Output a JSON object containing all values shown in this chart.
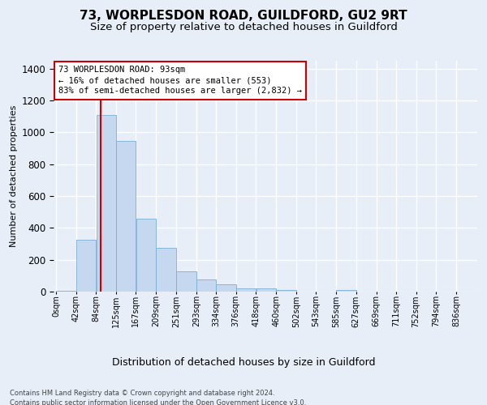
{
  "title1": "73, WORPLESDON ROAD, GUILDFORD, GU2 9RT",
  "title2": "Size of property relative to detached houses in Guildford",
  "xlabel": "Distribution of detached houses by size in Guildford",
  "ylabel": "Number of detached properties",
  "footnote1": "Contains HM Land Registry data © Crown copyright and database right 2024.",
  "footnote2": "Contains public sector information licensed under the Open Government Licence v3.0.",
  "bar_values": [
    5,
    325,
    1110,
    945,
    460,
    275,
    125,
    75,
    48,
    22,
    22,
    12,
    0,
    0,
    8,
    0,
    0,
    0,
    0
  ],
  "bin_left_edges": [
    0,
    42,
    84,
    125,
    167,
    209,
    251,
    293,
    334,
    376,
    418,
    460,
    502,
    543,
    585,
    627,
    669,
    711,
    752
  ],
  "bin_width": 42,
  "tick_positions": [
    0,
    42,
    84,
    125,
    167,
    209,
    251,
    293,
    334,
    376,
    418,
    460,
    502,
    543,
    585,
    627,
    669,
    711,
    752,
    794,
    836
  ],
  "tick_labels": [
    "0sqm",
    "42sqm",
    "84sqm",
    "125sqm",
    "167sqm",
    "209sqm",
    "251sqm",
    "293sqm",
    "334sqm",
    "376sqm",
    "418sqm",
    "460sqm",
    "502sqm",
    "543sqm",
    "585sqm",
    "627sqm",
    "669sqm",
    "711sqm",
    "752sqm",
    "794sqm",
    "836sqm"
  ],
  "bar_color": "#c5d8ef",
  "bar_edge_color": "#7aafd4",
  "vline_x": 93,
  "vline_color": "#cc0000",
  "annotation_text": "73 WORPLESDON ROAD: 93sqm\n← 16% of detached houses are smaller (553)\n83% of semi-detached houses are larger (2,832) →",
  "annotation_box_facecolor": "#ffffff",
  "annotation_box_edgecolor": "#cc0000",
  "ylim": [
    0,
    1450
  ],
  "xlim": [
    -5,
    880
  ],
  "background_color": "#e8eef8",
  "plot_bg_color": "#e8eef8",
  "grid_color": "#ffffff",
  "yticks": [
    0,
    200,
    400,
    600,
    800,
    1000,
    1200,
    1400
  ],
  "title1_fontsize": 11,
  "title2_fontsize": 9.5,
  "xlabel_fontsize": 9,
  "ylabel_fontsize": 8,
  "tick_fontsize": 7,
  "annot_fontsize": 7.5
}
